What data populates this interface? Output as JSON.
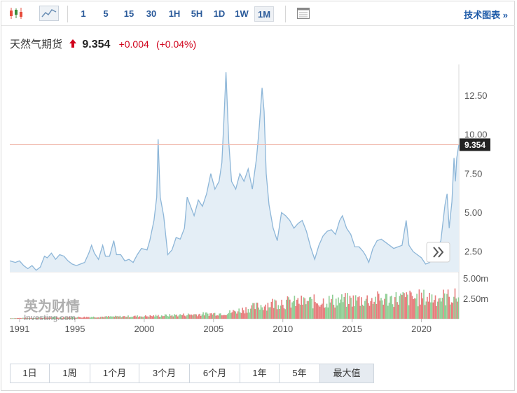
{
  "toolbar": {
    "icons": [
      "candlestick-icon",
      "area-chart-icon",
      "table-icon"
    ],
    "timeframes": [
      "1",
      "5",
      "15",
      "30",
      "1H",
      "5H",
      "1D",
      "1W",
      "1M"
    ],
    "active_timeframe": "1M",
    "advanced_label": "技术图表 »"
  },
  "quote": {
    "name": "天然气期货",
    "last": "9.354",
    "change": "+0.004",
    "change_pct": "(+0.04%)",
    "direction": "up",
    "color": "#d0021b"
  },
  "watermark": {
    "cn": "英为财情",
    "en": "Investing.com"
  },
  "ranges": [
    "1日",
    "1周",
    "1个月",
    "3个月",
    "6个月",
    "1年",
    "5年",
    "最大值"
  ],
  "active_range": "最大值",
  "chart_data": {
    "type": "area",
    "price": {
      "x_range": [
        1990.3,
        2022.7
      ],
      "ylim": [
        1.2,
        14.5
      ],
      "yticks": [
        2.5,
        5.0,
        7.5,
        10.0,
        12.5
      ],
      "ytick_labels": [
        "2.50",
        "5.00",
        "7.50",
        "10.00",
        "12.50"
      ],
      "x_ticks": [
        1991,
        1995,
        2000,
        2005,
        2010,
        2015,
        2020
      ],
      "current_value": 9.354,
      "current_label": "9.354",
      "points": [
        [
          1990.3,
          1.9
        ],
        [
          1990.7,
          1.8
        ],
        [
          1991.0,
          1.9
        ],
        [
          1991.3,
          1.6
        ],
        [
          1991.6,
          1.4
        ],
        [
          1991.9,
          1.6
        ],
        [
          1992.2,
          1.3
        ],
        [
          1992.5,
          1.5
        ],
        [
          1992.8,
          2.2
        ],
        [
          1993.0,
          2.1
        ],
        [
          1993.3,
          2.4
        ],
        [
          1993.6,
          2.0
        ],
        [
          1993.9,
          2.3
        ],
        [
          1994.2,
          2.2
        ],
        [
          1994.5,
          1.9
        ],
        [
          1994.8,
          1.7
        ],
        [
          1995.1,
          1.6
        ],
        [
          1995.4,
          1.7
        ],
        [
          1995.7,
          1.8
        ],
        [
          1996.0,
          2.4
        ],
        [
          1996.2,
          2.9
        ],
        [
          1996.4,
          2.4
        ],
        [
          1996.7,
          2.0
        ],
        [
          1997.0,
          2.9
        ],
        [
          1997.2,
          2.2
        ],
        [
          1997.5,
          2.2
        ],
        [
          1997.8,
          3.2
        ],
        [
          1998.0,
          2.3
        ],
        [
          1998.3,
          2.3
        ],
        [
          1998.6,
          1.9
        ],
        [
          1998.9,
          2.0
        ],
        [
          1999.2,
          1.8
        ],
        [
          1999.5,
          2.3
        ],
        [
          1999.8,
          2.7
        ],
        [
          2000.2,
          2.6
        ],
        [
          2000.4,
          3.2
        ],
        [
          2000.7,
          4.5
        ],
        [
          2000.9,
          6.0
        ],
        [
          2001.0,
          9.7
        ],
        [
          2001.15,
          6.0
        ],
        [
          2001.4,
          4.8
        ],
        [
          2001.7,
          2.3
        ],
        [
          2002.0,
          2.6
        ],
        [
          2002.3,
          3.4
        ],
        [
          2002.6,
          3.3
        ],
        [
          2002.9,
          4.0
        ],
        [
          2003.1,
          6.0
        ],
        [
          2003.3,
          5.5
        ],
        [
          2003.6,
          4.8
        ],
        [
          2003.9,
          5.8
        ],
        [
          2004.2,
          5.4
        ],
        [
          2004.5,
          6.2
        ],
        [
          2004.8,
          7.5
        ],
        [
          2005.1,
          6.5
        ],
        [
          2005.4,
          7.0
        ],
        [
          2005.6,
          8.2
        ],
        [
          2005.75,
          11.0
        ],
        [
          2005.9,
          14.0
        ],
        [
          2006.1,
          9.5
        ],
        [
          2006.3,
          7.0
        ],
        [
          2006.6,
          6.5
        ],
        [
          2006.9,
          7.5
        ],
        [
          2007.2,
          7.0
        ],
        [
          2007.5,
          7.8
        ],
        [
          2007.8,
          6.5
        ],
        [
          2008.1,
          8.5
        ],
        [
          2008.3,
          10.5
        ],
        [
          2008.5,
          13.0
        ],
        [
          2008.65,
          11.5
        ],
        [
          2008.8,
          7.5
        ],
        [
          2009.0,
          5.5
        ],
        [
          2009.3,
          4.0
        ],
        [
          2009.6,
          3.2
        ],
        [
          2009.9,
          5.0
        ],
        [
          2010.2,
          4.8
        ],
        [
          2010.5,
          4.5
        ],
        [
          2010.8,
          4.0
        ],
        [
          2011.1,
          4.3
        ],
        [
          2011.4,
          4.5
        ],
        [
          2011.7,
          3.8
        ],
        [
          2012.0,
          2.8
        ],
        [
          2012.3,
          2.0
        ],
        [
          2012.6,
          2.9
        ],
        [
          2012.9,
          3.5
        ],
        [
          2013.2,
          3.8
        ],
        [
          2013.5,
          3.9
        ],
        [
          2013.8,
          3.6
        ],
        [
          2014.1,
          4.5
        ],
        [
          2014.3,
          4.8
        ],
        [
          2014.6,
          4.0
        ],
        [
          2014.9,
          3.6
        ],
        [
          2015.2,
          2.8
        ],
        [
          2015.5,
          2.8
        ],
        [
          2015.8,
          2.5
        ],
        [
          2016.0,
          2.2
        ],
        [
          2016.2,
          1.8
        ],
        [
          2016.5,
          2.7
        ],
        [
          2016.8,
          3.2
        ],
        [
          2017.1,
          3.3
        ],
        [
          2017.4,
          3.1
        ],
        [
          2017.7,
          2.9
        ],
        [
          2018.0,
          2.7
        ],
        [
          2018.3,
          2.8
        ],
        [
          2018.6,
          2.9
        ],
        [
          2018.9,
          4.5
        ],
        [
          2019.1,
          2.9
        ],
        [
          2019.4,
          2.5
        ],
        [
          2019.7,
          2.3
        ],
        [
          2020.0,
          2.1
        ],
        [
          2020.3,
          1.7
        ],
        [
          2020.6,
          1.8
        ],
        [
          2020.9,
          2.9
        ],
        [
          2021.1,
          2.7
        ],
        [
          2021.4,
          3.2
        ],
        [
          2021.7,
          5.5
        ],
        [
          2021.85,
          6.2
        ],
        [
          2022.0,
          4.0
        ],
        [
          2022.2,
          5.7
        ],
        [
          2022.35,
          8.5
        ],
        [
          2022.45,
          7.0
        ],
        [
          2022.55,
          8.5
        ],
        [
          2022.7,
          9.354
        ]
      ]
    },
    "volume": {
      "yticks": [
        2500000,
        5000000
      ],
      "ytick_labels": [
        "2.50m",
        "5.00m"
      ],
      "ylim": [
        0,
        5500000
      ],
      "start_year": 1990.3,
      "step_years": 0.08333,
      "up_color": "#8fce94",
      "down_color": "#e77d7d"
    },
    "colors": {
      "line": "#8db6d8",
      "fill": "#e4eef6",
      "reference_line": "#f0b9ad",
      "current_badge": "#222222"
    }
  }
}
